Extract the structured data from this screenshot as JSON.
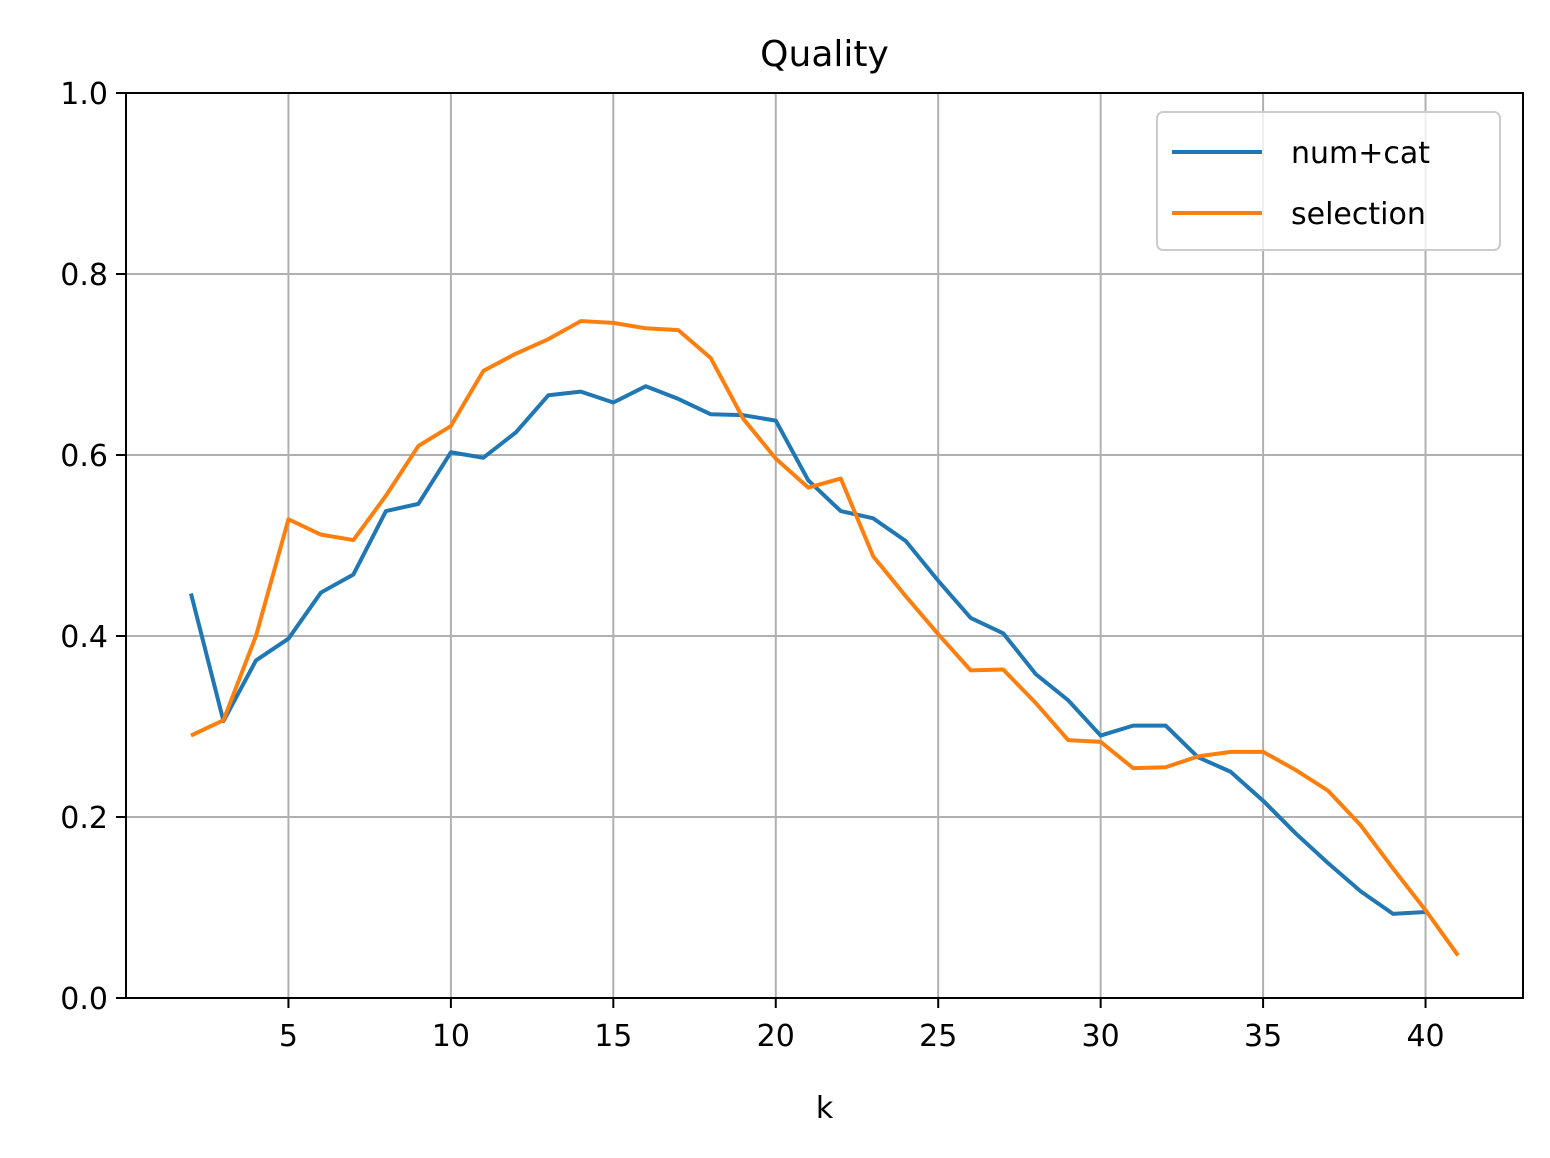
{
  "chart_data": {
    "type": "line",
    "title": "Quality",
    "xlabel": "k",
    "ylabel": "",
    "xlim": [
      0,
      43
    ],
    "ylim": [
      0.0,
      1.0
    ],
    "x_ticks": [
      5,
      10,
      15,
      20,
      25,
      30,
      35,
      40
    ],
    "x_tick_labels": [
      "5",
      "10",
      "15",
      "20",
      "25",
      "30",
      "35",
      "40"
    ],
    "y_ticks": [
      0.0,
      0.2,
      0.4,
      0.6,
      0.8,
      1.0
    ],
    "y_tick_labels": [
      "0.0",
      "0.2",
      "0.4",
      "0.6",
      "0.8",
      "1.0"
    ],
    "grid": true,
    "legend_position": "top-right",
    "series": [
      {
        "name": "num+cat",
        "color": "#1f77b4",
        "x": [
          2,
          3,
          4,
          5,
          6,
          7,
          8,
          9,
          10,
          11,
          12,
          13,
          14,
          15,
          16,
          17,
          18,
          19,
          20,
          21,
          22,
          23,
          24,
          25,
          26,
          27,
          28,
          29,
          30,
          31,
          32,
          33,
          34,
          35,
          36,
          37,
          38,
          39,
          40
        ],
        "values": [
          0.447,
          0.306,
          0.373,
          0.397,
          0.448,
          0.468,
          0.538,
          0.546,
          0.603,
          0.597,
          0.625,
          0.666,
          0.67,
          0.658,
          0.676,
          0.662,
          0.645,
          0.644,
          0.638,
          0.572,
          0.538,
          0.53,
          0.505,
          0.461,
          0.42,
          0.403,
          0.358,
          0.329,
          0.29,
          0.301,
          0.301,
          0.266,
          0.25,
          0.218,
          0.182,
          0.149,
          0.118,
          0.093,
          0.095
        ]
      },
      {
        "name": "selection",
        "color": "#ff7f0e",
        "x": [
          2,
          3,
          4,
          5,
          6,
          7,
          8,
          9,
          10,
          11,
          12,
          13,
          14,
          15,
          16,
          17,
          18,
          19,
          20,
          21,
          22,
          23,
          24,
          25,
          26,
          27,
          28,
          29,
          30,
          31,
          32,
          33,
          34,
          35,
          36,
          37,
          38,
          39,
          40,
          41
        ],
        "values": [
          0.29,
          0.307,
          0.4,
          0.529,
          0.512,
          0.506,
          0.555,
          0.61,
          0.632,
          0.693,
          0.712,
          0.728,
          0.748,
          0.746,
          0.74,
          0.738,
          0.707,
          0.64,
          0.596,
          0.564,
          0.574,
          0.488,
          0.444,
          0.402,
          0.362,
          0.363,
          0.326,
          0.285,
          0.283,
          0.254,
          0.255,
          0.267,
          0.272,
          0.272,
          0.252,
          0.229,
          0.191,
          0.143,
          0.097,
          0.047
        ]
      }
    ]
  }
}
